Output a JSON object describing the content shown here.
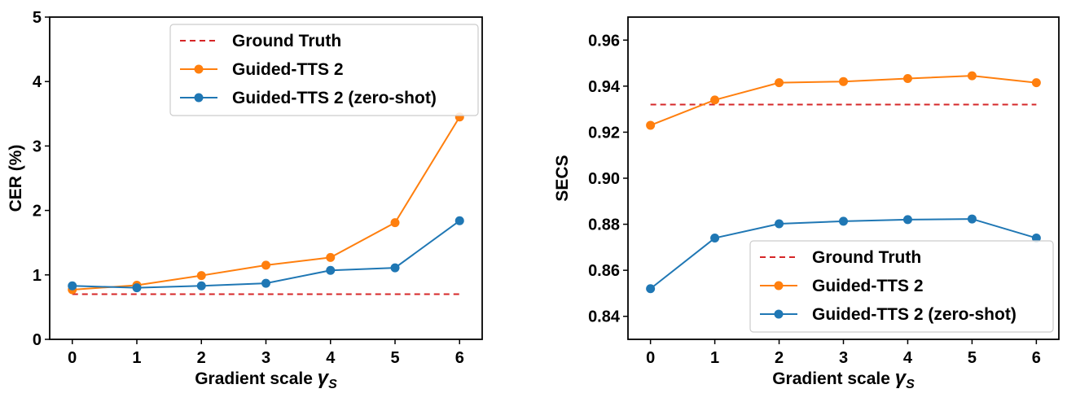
{
  "chart_data": [
    {
      "type": "line",
      "title": "",
      "xlabel": "Gradient scale",
      "xlabel_symbol": "γ",
      "xlabel_subscript": "S",
      "ylabel": "CER (%)",
      "xlim": [
        -0.35,
        6.35
      ],
      "ylim": [
        0,
        5
      ],
      "xticks": [
        0,
        1,
        2,
        3,
        4,
        5,
        6
      ],
      "yticks": [
        0,
        1,
        2,
        3,
        4,
        5
      ],
      "ytick_labels": [
        "0",
        "1",
        "2",
        "3",
        "4",
        "5"
      ],
      "grid": false,
      "legend_position": "top-right",
      "x": [
        0,
        1,
        2,
        3,
        4,
        5,
        6
      ],
      "series": [
        {
          "name": "Ground Truth",
          "style": "dashed",
          "color": "#d62728",
          "x": [
            0,
            6
          ],
          "values": [
            0.7,
            0.7
          ]
        },
        {
          "name": "Guided-TTS 2",
          "style": "line-marker",
          "color": "#ff7f0e",
          "values": [
            0.77,
            0.84,
            0.99,
            1.15,
            1.27,
            1.81,
            3.45
          ]
        },
        {
          "name": "Guided-TTS 2 (zero-shot)",
          "style": "line-marker",
          "color": "#1f77b4",
          "values": [
            0.83,
            0.8,
            0.83,
            0.87,
            1.07,
            1.11,
            1.84
          ]
        }
      ]
    },
    {
      "type": "line",
      "title": "",
      "xlabel": "Gradient scale",
      "xlabel_symbol": "γ",
      "xlabel_subscript": "S",
      "ylabel": "SECS",
      "xlim": [
        -0.35,
        6.35
      ],
      "ylim": [
        0.83,
        0.97
      ],
      "xticks": [
        0,
        1,
        2,
        3,
        4,
        5,
        6
      ],
      "yticks": [
        0.84,
        0.86,
        0.88,
        0.9,
        0.92,
        0.94,
        0.96
      ],
      "ytick_labels": [
        "0.84",
        "0.86",
        "0.88",
        "0.90",
        "0.92",
        "0.94",
        "0.96"
      ],
      "grid": false,
      "legend_position": "bottom-right",
      "x": [
        0,
        1,
        2,
        3,
        4,
        5,
        6
      ],
      "series": [
        {
          "name": "Ground Truth",
          "style": "dashed",
          "color": "#d62728",
          "x": [
            0,
            6
          ],
          "values": [
            0.932,
            0.932
          ]
        },
        {
          "name": "Guided-TTS 2",
          "style": "line-marker",
          "color": "#ff7f0e",
          "values": [
            0.923,
            0.934,
            0.9415,
            0.942,
            0.9433,
            0.9445,
            0.9415
          ]
        },
        {
          "name": "Guided-TTS 2 (zero-shot)",
          "style": "line-marker",
          "color": "#1f77b4",
          "values": [
            0.852,
            0.874,
            0.8802,
            0.8813,
            0.882,
            0.8823,
            0.874
          ]
        }
      ]
    }
  ]
}
